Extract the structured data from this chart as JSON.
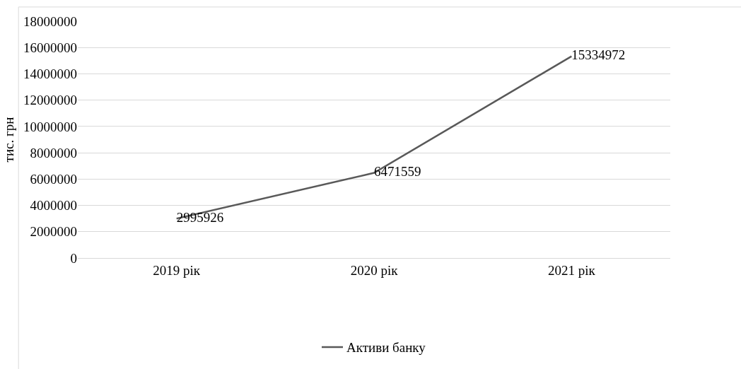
{
  "chart_data": {
    "type": "line",
    "ylabel": "тис. грн",
    "categories": [
      "2019 рік",
      "2020 рік",
      "2021 рік"
    ],
    "series": [
      {
        "name": "Активи банку",
        "color": "#595959",
        "values": [
          2995926,
          6471559,
          15334972
        ]
      }
    ],
    "ylim": [
      0,
      18000000
    ],
    "yticks": [
      0,
      2000000,
      4000000,
      6000000,
      8000000,
      10000000,
      12000000,
      14000000,
      16000000,
      18000000
    ],
    "grid": "y",
    "legend": "bottom",
    "data_labels": true,
    "marker": "none",
    "line_style": "solid"
  }
}
